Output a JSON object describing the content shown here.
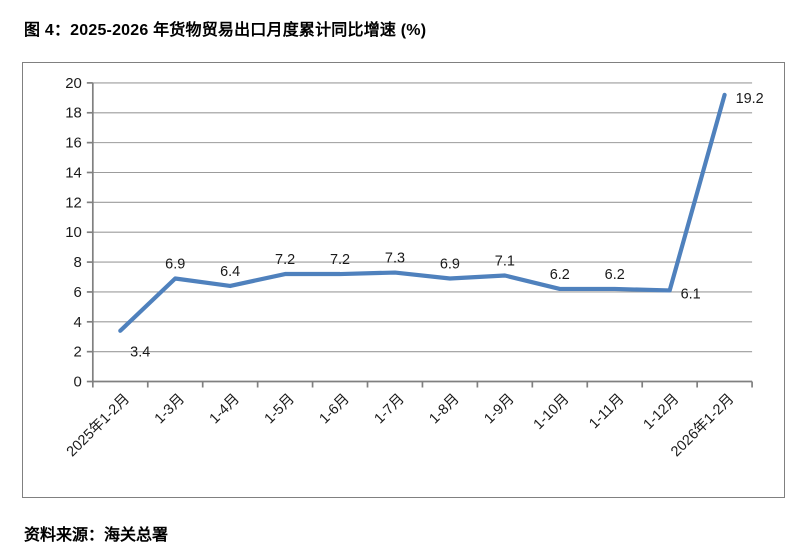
{
  "figure": {
    "title": "图 4：2025-2026 年货物贸易出口月度累计同比增速 (%)",
    "source": "资料来源：海关总署"
  },
  "chart_data": {
    "type": "line",
    "title": "2025-2026 年货物贸易出口月度累计同比增速 (%)",
    "xlabel": "",
    "ylabel": "",
    "categories": [
      "2025年1-2月",
      "1-3月",
      "1-4月",
      "1-5月",
      "1-6月",
      "1-7月",
      "1-8月",
      "1-9月",
      "1-10月",
      "1-11月",
      "1-12月",
      "2026年1-2月"
    ],
    "values": [
      3.4,
      6.9,
      6.4,
      7.2,
      7.2,
      7.3,
      6.9,
      7.1,
      6.2,
      6.2,
      6.1,
      19.2
    ],
    "point_labels": [
      "3.4",
      "6.9",
      "6.4",
      "7.2",
      "7.2",
      "7.3",
      "6.9",
      "7.1",
      "6.2",
      "6.2",
      "6.1",
      "19.2"
    ],
    "label_placements": [
      "below",
      "above",
      "above",
      "above",
      "above",
      "above",
      "above",
      "above",
      "above",
      "above",
      "right",
      "right"
    ],
    "ylim": [
      0,
      20
    ],
    "ytick_step": 2,
    "grid": true,
    "legend": "none",
    "colors": {
      "line": "#4F81BD",
      "grid": "#9C9C9C",
      "axis": "#808080",
      "text": "#1A1A1A"
    }
  }
}
